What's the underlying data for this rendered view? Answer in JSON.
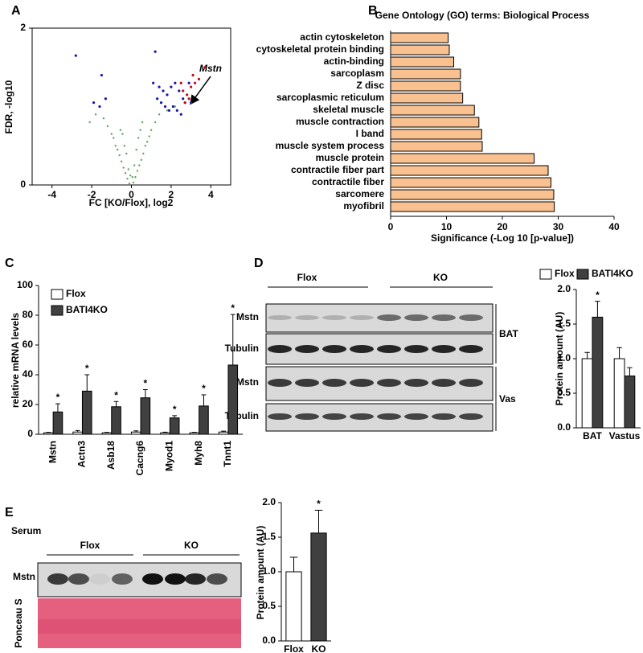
{
  "panel_labels": [
    "A",
    "B",
    "C",
    "D",
    "E"
  ],
  "blots": {
    "D": {
      "groups": [
        "Flox",
        "KO"
      ],
      "rows": [
        "Mstn",
        "Tubulin",
        "Mstn",
        "Tubulin"
      ],
      "tissues": [
        "BAT",
        "Vas"
      ]
    },
    "E": {
      "sample": "Serum",
      "groups": [
        "Flox",
        "KO"
      ],
      "rows": [
        "Mstn",
        "Ponceau S"
      ]
    }
  },
  "chart_data": [
    {
      "type": "scatter",
      "xlabel": "FC [KO/Flox], log2",
      "ylabel": "FDR, -log10",
      "annotation": "Mstn",
      "xlim": [
        -5,
        5
      ],
      "ylim": [
        0,
        2
      ],
      "xticks": [
        -4,
        -2,
        0,
        2,
        4
      ],
      "yticks": [
        0,
        2
      ],
      "series": [
        {
          "color": "#5aa55a",
          "x": [
            -0.1,
            0.1,
            -0.2,
            0.2,
            -0.3,
            0.3,
            -0.4,
            0.4,
            -0.5,
            0.5,
            -0.6,
            0.6,
            -0.7,
            0.7,
            -0.8,
            0.8,
            -0.9,
            0.9,
            -1,
            1,
            -1.2,
            1.2,
            -1.4,
            1.4,
            -0.15,
            0.15,
            -0.35,
            0.35,
            -0.55,
            0.55,
            0.05,
            -0.05,
            -1.8,
            1.8,
            2.2,
            -2.1,
            0.25,
            -0.25,
            0.45,
            -0.45
          ],
          "y": [
            0.02,
            0.03,
            0.08,
            0.1,
            0.15,
            0.18,
            0.22,
            0.25,
            0.3,
            0.32,
            0.38,
            0.4,
            0.45,
            0.5,
            0.5,
            0.55,
            0.6,
            0.62,
            0.65,
            0.7,
            0.75,
            0.8,
            0.85,
            0.9,
            0.2,
            0.25,
            0.5,
            0.6,
            0.7,
            0.8,
            0.1,
            0.12,
            0.9,
            0.95,
            1.0,
            0.8,
            0.45,
            0.4,
            0.7,
            0.65
          ]
        },
        {
          "color": "#1a1aa8",
          "x": [
            -1.9,
            -1.6,
            -1.3,
            -1.5,
            1.3,
            1.5,
            1.7,
            1.9,
            2.1,
            2.3,
            2.5,
            2.7,
            1.6,
            1.8,
            2.0,
            2.2,
            2.4,
            1.4,
            -2.8,
            1.2,
            3.0,
            1.1,
            2.6,
            2.9
          ],
          "y": [
            1.05,
            1.0,
            1.1,
            1.4,
            1.1,
            1.05,
            1.0,
            0.95,
            1.0,
            0.95,
            0.9,
            1.05,
            1.2,
            1.15,
            1.25,
            1.3,
            1.2,
            1.25,
            1.65,
            1.7,
            1.05,
            1.3,
            1.1,
            1.3
          ]
        },
        {
          "color": "#c0101a",
          "x": [
            2.6,
            2.8,
            3.0,
            3.2,
            2.7,
            2.9,
            3.4,
            2.5,
            3.1,
            3.7
          ],
          "y": [
            1.2,
            1.15,
            1.25,
            1.3,
            1.05,
            1.1,
            1.35,
            1.3,
            1.4,
            1.5
          ]
        }
      ]
    },
    {
      "type": "hbar",
      "title": "Gene Ontology (GO) terms: Biological Process",
      "xlabel": "Significance (-Log 10 [p-value])",
      "categories": [
        "actin cytoskeleton",
        "cytoskeletal protein binding",
        "actin-binding",
        "sarcoplasm",
        "Z disc",
        "sarcoplasmic reticulum",
        "skeletal muscle",
        "muscle contraction",
        "I band",
        "muscle system process",
        "muscle protein",
        "contractile fiber part",
        "contractile fiber",
        "sarcomere",
        "myofibril"
      ],
      "values": [
        10.3,
        10.5,
        11.3,
        12.5,
        12.5,
        12.9,
        15,
        15.8,
        16.3,
        16.4,
        25.7,
        28.2,
        28.7,
        29.2,
        29.3
      ],
      "color": "#f9c18f",
      "xlim": [
        0,
        40
      ],
      "xticks": [
        0,
        10,
        20,
        30,
        40
      ]
    },
    {
      "type": "bar",
      "ylabel": "relative mRNA levels",
      "legend": "upper left",
      "categories": [
        "Mstn",
        "Actn3",
        "Asb18",
        "Cacng6",
        "Myod1",
        "Myh8",
        "Tnnt1"
      ],
      "ylim": [
        0,
        100
      ],
      "yticks": [
        0,
        20,
        40,
        60,
        80,
        100
      ],
      "series": [
        {
          "name": "Flox",
          "color": "#ffffff",
          "values": [
            1,
            1.5,
            1,
            1.5,
            1,
            1,
            1.5
          ],
          "errors": [
            0.3,
            1,
            0.3,
            0.8,
            0.4,
            0.3,
            0.6
          ]
        },
        {
          "name": "BATI4KO",
          "color": "#404040",
          "values": [
            15,
            29,
            18.5,
            24.5,
            11,
            19,
            46.5
          ],
          "errors": [
            5.5,
            11,
            3.5,
            5.5,
            1.5,
            7.5,
            34
          ],
          "markers": [
            "*",
            "*",
            "*",
            "*",
            "*",
            "*",
            "*"
          ]
        }
      ]
    },
    {
      "type": "bar",
      "ylabel": "Protein amount (AU)",
      "legend": "top",
      "categories": [
        "BAT",
        "Vastus"
      ],
      "ylim": [
        0,
        2
      ],
      "yticks": [
        {
          "value": 0,
          "label": "0.0"
        },
        0.5,
        {
          "value": 1,
          "label": "1.0"
        },
        1.5,
        {
          "value": 2,
          "label": "2.0"
        }
      ],
      "series": [
        {
          "name": "Flox",
          "color": "#ffffff",
          "values": [
            1.0,
            1.0
          ],
          "errors": [
            0.09,
            0.16
          ]
        },
        {
          "name": "BATI4KO",
          "color": "#404040",
          "values": [
            1.6,
            0.75
          ],
          "errors": [
            0.23,
            0.12
          ],
          "markers": [
            "*",
            null
          ]
        }
      ]
    },
    {
      "type": "bar",
      "ylabel": "Protein amount (AU)",
      "categories": [
        "Flox",
        "KO"
      ],
      "ylim": [
        0,
        2
      ],
      "yticks": [
        {
          "value": 0,
          "label": "0.0"
        },
        0.5,
        {
          "value": 1,
          "label": "1.0"
        },
        1.5,
        {
          "value": 2,
          "label": "2.0"
        }
      ],
      "series": [
        {
          "colors": [
            "#ffffff",
            "#404040"
          ],
          "values": [
            1.0,
            1.56
          ],
          "errors": [
            0.21,
            0.33
          ],
          "markers": [
            null,
            "*"
          ]
        }
      ]
    }
  ]
}
